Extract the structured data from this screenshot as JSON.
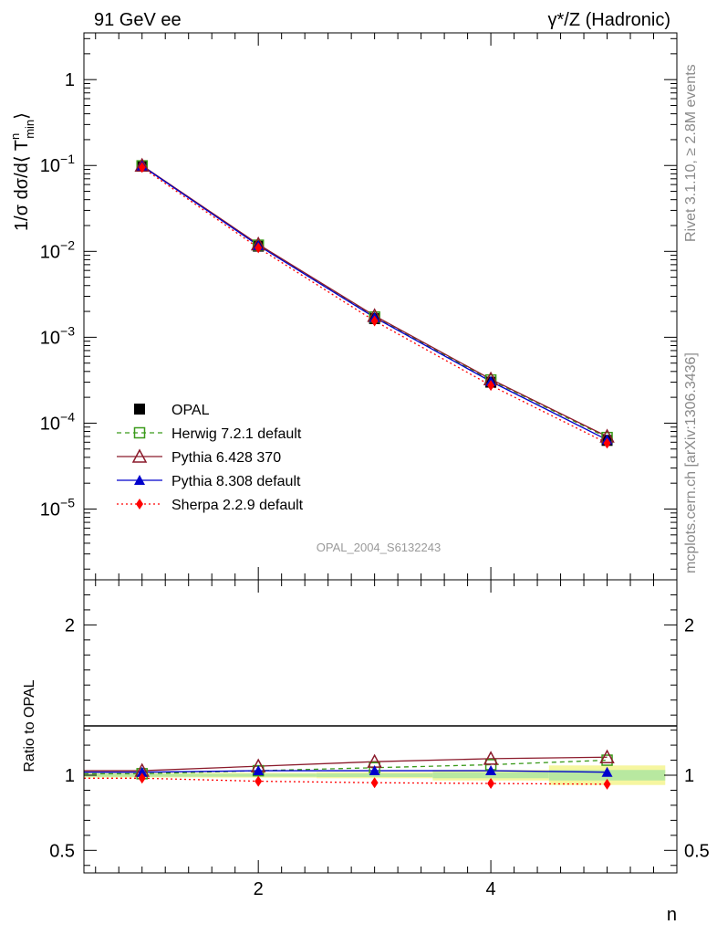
{
  "header": {
    "left_title": "91 GeV ee",
    "right_title": "γ*/Z (Hadronic)"
  },
  "side_labels": {
    "rivet": "Rivet 3.1.10, ≥ 2.8M events",
    "mcplots": "mcplots.cern.ch [arXiv:1306.3436]"
  },
  "analysis_tag": "OPAL_2004_S6132243",
  "chart_data": [
    {
      "type": "line",
      "ylabel": "1/σ dσ/d⟨ T",
      "ylabel_sup": "n",
      "ylabel_sub": "min",
      "ylabel_end": "⟩",
      "yscale": "log",
      "xlim": [
        0.5,
        5.6
      ],
      "ylim": [
        1.5e-06,
        3.5
      ],
      "y_ticks": [
        {
          "value": 1,
          "mant": "1",
          "exp": ""
        },
        {
          "value": 0.1,
          "mant": "10",
          "exp": "−1"
        },
        {
          "value": 0.01,
          "mant": "10",
          "exp": "−2"
        },
        {
          "value": 0.001,
          "mant": "10",
          "exp": "−3"
        },
        {
          "value": 0.0001,
          "mant": "10",
          "exp": "−4"
        },
        {
          "value": 1e-05,
          "mant": "10",
          "exp": "−5"
        }
      ],
      "legend_position": "lower-left",
      "x": [
        1,
        2,
        3,
        4,
        5
      ],
      "series": [
        {
          "name": "OPAL",
          "color": "#000000",
          "marker": "square-filled",
          "line": "none",
          "values": [
            0.098,
            0.0115,
            0.00165,
            0.0003,
            6.3e-05
          ]
        },
        {
          "name": "Herwig 7.2.1 default",
          "color": "#3a9a1a",
          "marker": "square-open",
          "line": "dashed",
          "values": [
            0.099,
            0.0118,
            0.00172,
            0.000318,
            6.8e-05
          ]
        },
        {
          "name": "Pythia 6.428 370",
          "color": "#8b1a2b",
          "marker": "triangle-open",
          "line": "solid",
          "values": [
            0.1,
            0.0121,
            0.00178,
            0.000325,
            7e-05
          ]
        },
        {
          "name": "Pythia 8.308 default",
          "color": "#0000cc",
          "marker": "triangle-filled",
          "line": "solid",
          "values": [
            0.099,
            0.0117,
            0.0017,
            0.000306,
            6.4e-05
          ]
        },
        {
          "name": "Sherpa 2.2.9 default",
          "color": "#ff0000",
          "marker": "diamond-filled",
          "line": "dotted",
          "values": [
            0.095,
            0.011,
            0.00155,
            0.000275,
            5.85e-05
          ]
        }
      ]
    },
    {
      "type": "line",
      "ylabel": "Ratio to OPAL",
      "xlabel": "n",
      "xlim": [
        0.5,
        5.6
      ],
      "ylim": [
        0.35,
        2.3
      ],
      "y_ticks": [
        {
          "value": 2,
          "label": "2"
        },
        {
          "value": 1,
          "label": "1"
        },
        {
          "value": 0.5,
          "label": "0.5"
        }
      ],
      "x_ticks": [
        {
          "value": 2,
          "label": "2"
        },
        {
          "value": 4,
          "label": "4"
        }
      ],
      "x": [
        1,
        2,
        3,
        4,
        5
      ],
      "reference_band": [
        {
          "x0": 0.5,
          "x1": 1.5,
          "inner": 0.01,
          "outer": 0.015
        },
        {
          "x0": 1.5,
          "x1": 2.5,
          "inner": 0.01,
          "outer": 0.016
        },
        {
          "x0": 2.5,
          "x1": 3.5,
          "inner": 0.012,
          "outer": 0.02
        },
        {
          "x0": 3.5,
          "x1": 4.5,
          "inner": 0.02,
          "outer": 0.035
        },
        {
          "x0": 4.5,
          "x1": 5.5,
          "inner": 0.035,
          "outer": 0.065
        }
      ],
      "series": [
        {
          "name": "Herwig 7.2.1 default",
          "values": [
            1.01,
            1.03,
            1.05,
            1.07,
            1.1
          ]
        },
        {
          "name": "Pythia 6.428 370",
          "values": [
            1.03,
            1.06,
            1.09,
            1.11,
            1.12
          ]
        },
        {
          "name": "Pythia 8.308 default",
          "values": [
            1.02,
            1.03,
            1.03,
            1.03,
            1.02
          ]
        },
        {
          "name": "Sherpa 2.2.9 default",
          "values": [
            0.98,
            0.96,
            0.95,
            0.945,
            0.94
          ]
        }
      ]
    }
  ]
}
